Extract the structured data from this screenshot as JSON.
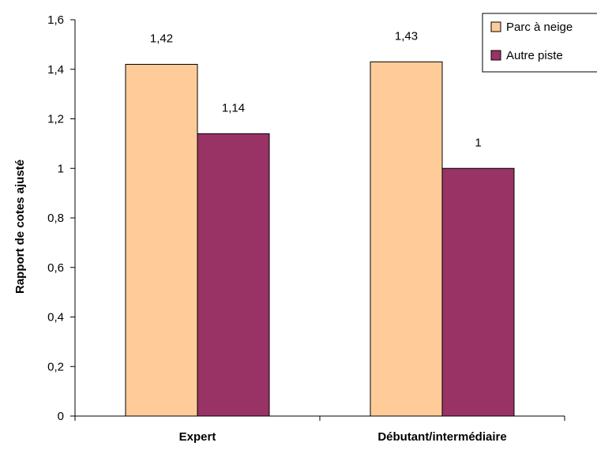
{
  "chart_data": {
    "type": "bar",
    "categories": [
      "Expert",
      "Débutant/intermédiaire"
    ],
    "series": [
      {
        "name": "Parc à neige",
        "values": [
          1.42,
          1.43
        ],
        "color": "#FFCC99",
        "value_labels": [
          "1,42",
          "1,43"
        ]
      },
      {
        "name": "Autre piste",
        "values": [
          1.14,
          1.0
        ],
        "color": "#993366",
        "value_labels": [
          "1,14",
          "1"
        ]
      }
    ],
    "ylabel": "Rapport de cotes ajusté",
    "xlabel": "",
    "ylim": [
      0,
      1.6
    ],
    "yticks": [
      0,
      0.2,
      0.4,
      0.6,
      0.8,
      1,
      1.2,
      1.4,
      1.6
    ],
    "ytick_labels": [
      "0",
      "0,2",
      "0,4",
      "0,6",
      "0,8",
      "1",
      "1,2",
      "1,4",
      "1,6"
    ],
    "grid": false,
    "legend": "top-right"
  }
}
